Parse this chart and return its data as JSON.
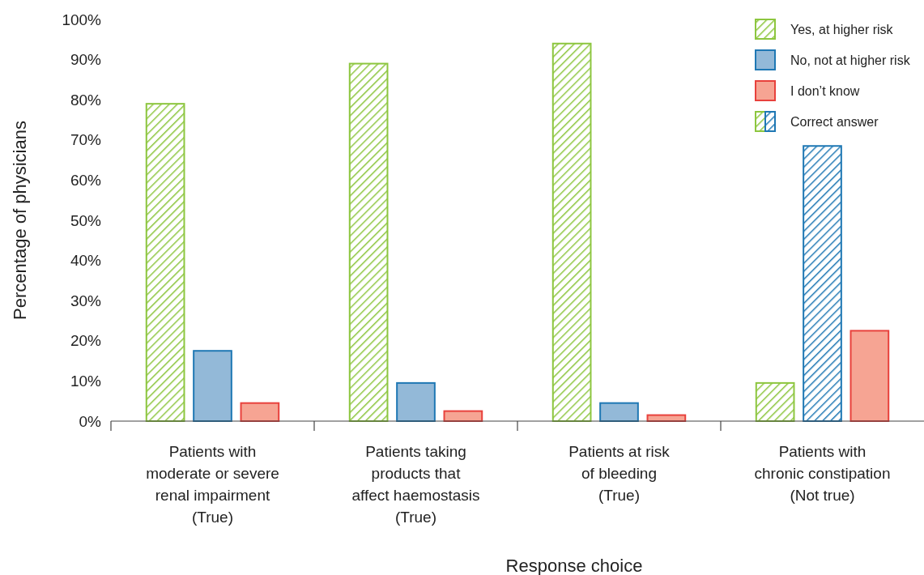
{
  "chart_data": {
    "type": "bar",
    "xlabel": "Response choice",
    "ylabel": "Percentage of physicians",
    "categories": [
      "Patients with\nmoderate or severe\nrenal impairment\n(True)",
      "Patients taking\nproducts that\naffect haemostasis\n(True)",
      "Patients at risk\nof bleeding\n(True)",
      "Patients with\nchronic constipation\n(Not true)"
    ],
    "series": [
      {
        "name": "Yes, at higher risk",
        "color": "#8dc63f",
        "colors": [
          "#8dc63f",
          "#8dc63f",
          "#8dc63f",
          "#8dc63f"
        ],
        "values": [
          79,
          89,
          94,
          9.5
        ]
      },
      {
        "name": "No, not at higher risk",
        "color": "#1f78b4",
        "colors": [
          "#93b9d8",
          "#93b9d8",
          "#93b9d8",
          "#1f78b4"
        ],
        "values": [
          17.5,
          9.5,
          4.5,
          68.5
        ]
      },
      {
        "name": "I don’t know",
        "color": "#e8413c",
        "colors": [
          "#f6a493",
          "#f6a493",
          "#f6a493",
          "#f6a493"
        ],
        "values": [
          4.5,
          2.5,
          1.5,
          22.5
        ]
      },
      {
        "name": "Correct answer",
        "colors": [
          "#8dc63f",
          "#8dc63f",
          "#8dc63f",
          "#1f78b4"
        ],
        "values": [
          null,
          null,
          null,
          null
        ]
      }
    ],
    "ylim": [
      0,
      100
    ],
    "yticks": [
      {
        "value": 0,
        "label": "0%"
      },
      {
        "value": 10,
        "label": "10%"
      },
      {
        "value": 20,
        "label": "20%"
      },
      {
        "value": 30,
        "label": "30%"
      },
      {
        "value": 40,
        "label": "40%"
      },
      {
        "value": 50,
        "label": "50%"
      },
      {
        "value": 60,
        "label": "60%"
      },
      {
        "value": 70,
        "label": "70%"
      },
      {
        "value": 80,
        "label": "80%"
      },
      {
        "value": 90,
        "label": "90%"
      },
      {
        "value": 100,
        "label": "100%"
      }
    ],
    "grid": false,
    "legend": "top right"
  }
}
